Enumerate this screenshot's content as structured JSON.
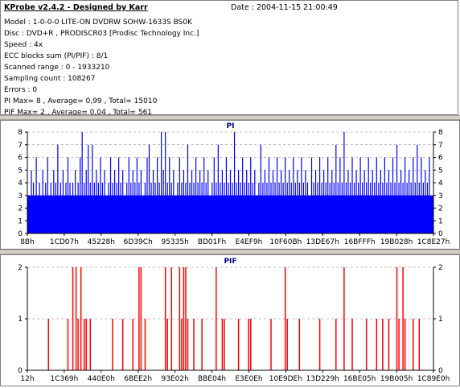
{
  "header": {
    "app_title": "KProbe v2.4.2 - Designed by Karr",
    "date_label": "Date : 2004-11-15 21:00:49"
  },
  "info": [
    "Model : 1-0-0-0 LITE-ON DVDRW SOHW-1633S BS0K",
    "Disc : DVD+R , PRODISCR03 [Prodisc Technology Inc.]",
    "Speed : 4x",
    "ECC blocks sum (PI/PIF) : 8/1",
    "Scanned range : 0 - 1933210",
    "Sampling count : 108267",
    "Errors : 0",
    "PI Max= 8 , Average= 0,99 , Total= 15010",
    "PIF Max= 2 , Average= 0,04 , Total= 561"
  ],
  "colors": {
    "pi_fill": "#0000ff",
    "pif_bar": "#ff0000",
    "axis_line": "#000000",
    "grid": "#808080",
    "plot_bg": "#ffffff"
  },
  "chart_data": [
    {
      "type": "bar",
      "title": "PI",
      "ylim": [
        0,
        8
      ],
      "y_ticks": [
        "0",
        "1",
        "2",
        "3",
        "4",
        "5",
        "6",
        "7",
        "8"
      ],
      "x_tick_labels": [
        "8Bh",
        "1CD07h",
        "45228h",
        "6D39Ch",
        "95335h",
        "BD01Fh",
        "E4EF9h",
        "10F60Bh",
        "13DE67h",
        "16BFFFh",
        "19B028h",
        "1C8E27h"
      ],
      "baseline_level": 3,
      "grid": true,
      "spikes": [
        [
          0.01,
          5
        ],
        [
          0.015,
          4
        ],
        [
          0.022,
          6
        ],
        [
          0.03,
          4
        ],
        [
          0.038,
          5
        ],
        [
          0.045,
          4
        ],
        [
          0.05,
          6
        ],
        [
          0.058,
          4
        ],
        [
          0.065,
          5
        ],
        [
          0.07,
          4
        ],
        [
          0.075,
          7
        ],
        [
          0.082,
          4
        ],
        [
          0.088,
          5
        ],
        [
          0.095,
          4
        ],
        [
          0.1,
          6
        ],
        [
          0.105,
          4
        ],
        [
          0.112,
          4
        ],
        [
          0.118,
          5
        ],
        [
          0.125,
          4
        ],
        [
          0.13,
          6
        ],
        [
          0.135,
          8
        ],
        [
          0.14,
          4
        ],
        [
          0.145,
          5
        ],
        [
          0.15,
          7
        ],
        [
          0.155,
          4
        ],
        [
          0.16,
          7
        ],
        [
          0.165,
          4
        ],
        [
          0.17,
          5
        ],
        [
          0.175,
          4
        ],
        [
          0.18,
          6
        ],
        [
          0.185,
          4
        ],
        [
          0.19,
          5
        ],
        [
          0.2,
          4
        ],
        [
          0.205,
          6
        ],
        [
          0.21,
          4
        ],
        [
          0.215,
          5
        ],
        [
          0.22,
          4
        ],
        [
          0.225,
          6
        ],
        [
          0.23,
          4
        ],
        [
          0.235,
          5
        ],
        [
          0.245,
          4
        ],
        [
          0.25,
          6
        ],
        [
          0.255,
          4
        ],
        [
          0.26,
          5
        ],
        [
          0.265,
          4
        ],
        [
          0.27,
          6
        ],
        [
          0.275,
          4
        ],
        [
          0.28,
          5
        ],
        [
          0.29,
          4
        ],
        [
          0.295,
          6
        ],
        [
          0.3,
          7
        ],
        [
          0.305,
          4
        ],
        [
          0.31,
          5
        ],
        [
          0.315,
          4
        ],
        [
          0.32,
          6
        ],
        [
          0.325,
          4
        ],
        [
          0.33,
          8
        ],
        [
          0.335,
          5
        ],
        [
          0.34,
          8
        ],
        [
          0.345,
          4
        ],
        [
          0.35,
          6
        ],
        [
          0.355,
          4
        ],
        [
          0.36,
          5
        ],
        [
          0.37,
          4
        ],
        [
          0.375,
          6
        ],
        [
          0.38,
          4
        ],
        [
          0.385,
          5
        ],
        [
          0.39,
          4
        ],
        [
          0.395,
          7
        ],
        [
          0.4,
          4
        ],
        [
          0.405,
          5
        ],
        [
          0.41,
          4
        ],
        [
          0.415,
          6
        ],
        [
          0.42,
          4
        ],
        [
          0.425,
          5
        ],
        [
          0.43,
          4
        ],
        [
          0.435,
          6
        ],
        [
          0.44,
          4
        ],
        [
          0.445,
          5
        ],
        [
          0.455,
          4
        ],
        [
          0.46,
          6
        ],
        [
          0.465,
          4
        ],
        [
          0.47,
          7
        ],
        [
          0.475,
          4
        ],
        [
          0.48,
          5
        ],
        [
          0.485,
          4
        ],
        [
          0.49,
          6
        ],
        [
          0.495,
          4
        ],
        [
          0.5,
          5
        ],
        [
          0.505,
          4
        ],
        [
          0.51,
          8
        ],
        [
          0.515,
          4
        ],
        [
          0.52,
          5
        ],
        [
          0.525,
          4
        ],
        [
          0.53,
          6
        ],
        [
          0.535,
          4
        ],
        [
          0.54,
          5
        ],
        [
          0.545,
          4
        ],
        [
          0.55,
          6
        ],
        [
          0.555,
          4
        ],
        [
          0.56,
          5
        ],
        [
          0.57,
          4
        ],
        [
          0.575,
          7
        ],
        [
          0.58,
          4
        ],
        [
          0.585,
          5
        ],
        [
          0.59,
          4
        ],
        [
          0.595,
          6
        ],
        [
          0.6,
          4
        ],
        [
          0.605,
          5
        ],
        [
          0.61,
          4
        ],
        [
          0.615,
          6
        ],
        [
          0.62,
          4
        ],
        [
          0.625,
          5
        ],
        [
          0.63,
          4
        ],
        [
          0.635,
          6
        ],
        [
          0.64,
          4
        ],
        [
          0.645,
          5
        ],
        [
          0.65,
          4
        ],
        [
          0.655,
          6
        ],
        [
          0.66,
          4
        ],
        [
          0.665,
          5
        ],
        [
          0.67,
          4
        ],
        [
          0.675,
          6
        ],
        [
          0.68,
          4
        ],
        [
          0.685,
          5
        ],
        [
          0.69,
          4
        ],
        [
          0.7,
          6
        ],
        [
          0.705,
          4
        ],
        [
          0.71,
          5
        ],
        [
          0.715,
          4
        ],
        [
          0.72,
          6
        ],
        [
          0.725,
          4
        ],
        [
          0.73,
          5
        ],
        [
          0.735,
          4
        ],
        [
          0.74,
          6
        ],
        [
          0.745,
          4
        ],
        [
          0.75,
          5
        ],
        [
          0.755,
          4
        ],
        [
          0.76,
          7
        ],
        [
          0.765,
          4
        ],
        [
          0.77,
          6
        ],
        [
          0.775,
          4
        ],
        [
          0.78,
          8
        ],
        [
          0.785,
          4
        ],
        [
          0.79,
          5
        ],
        [
          0.795,
          4
        ],
        [
          0.8,
          6
        ],
        [
          0.805,
          4
        ],
        [
          0.81,
          5
        ],
        [
          0.815,
          4
        ],
        [
          0.82,
          6
        ],
        [
          0.825,
          4
        ],
        [
          0.83,
          5
        ],
        [
          0.835,
          4
        ],
        [
          0.84,
          6
        ],
        [
          0.845,
          4
        ],
        [
          0.85,
          5
        ],
        [
          0.855,
          4
        ],
        [
          0.86,
          6
        ],
        [
          0.865,
          4
        ],
        [
          0.87,
          5
        ],
        [
          0.875,
          4
        ],
        [
          0.88,
          6
        ],
        [
          0.885,
          4
        ],
        [
          0.89,
          5
        ],
        [
          0.895,
          4
        ],
        [
          0.9,
          6
        ],
        [
          0.905,
          4
        ],
        [
          0.91,
          7
        ],
        [
          0.915,
          4
        ],
        [
          0.92,
          5
        ],
        [
          0.925,
          4
        ],
        [
          0.93,
          6
        ],
        [
          0.935,
          4
        ],
        [
          0.94,
          5
        ],
        [
          0.945,
          4
        ],
        [
          0.95,
          6
        ],
        [
          0.955,
          4
        ],
        [
          0.96,
          7
        ],
        [
          0.965,
          4
        ],
        [
          0.97,
          6
        ],
        [
          0.975,
          4
        ],
        [
          0.98,
          5
        ],
        [
          0.985,
          4
        ],
        [
          0.99,
          6
        ]
      ]
    },
    {
      "type": "bar",
      "title": "PIF",
      "ylim": [
        0,
        2
      ],
      "y_ticks": [
        "0",
        "1",
        "2"
      ],
      "x_tick_labels": [
        "12h",
        "1C369h",
        "440E0h",
        "6BEE2h",
        "93E02h",
        "BBE04h",
        "E3E0Eh",
        "10E9DEh",
        "13D229h",
        "16BE05h",
        "19B005h",
        "1C89E0h"
      ],
      "grid": true,
      "spikes": [
        [
          0.052,
          1
        ],
        [
          0.1,
          1
        ],
        [
          0.112,
          2
        ],
        [
          0.12,
          2
        ],
        [
          0.125,
          1
        ],
        [
          0.132,
          2
        ],
        [
          0.14,
          1
        ],
        [
          0.145,
          1
        ],
        [
          0.155,
          1
        ],
        [
          0.21,
          1
        ],
        [
          0.235,
          1
        ],
        [
          0.26,
          1
        ],
        [
          0.275,
          2
        ],
        [
          0.28,
          2
        ],
        [
          0.29,
          1
        ],
        [
          0.34,
          2
        ],
        [
          0.345,
          1
        ],
        [
          0.355,
          2
        ],
        [
          0.375,
          2
        ],
        [
          0.38,
          1
        ],
        [
          0.385,
          2
        ],
        [
          0.39,
          2
        ],
        [
          0.395,
          1
        ],
        [
          0.41,
          1
        ],
        [
          0.43,
          1
        ],
        [
          0.465,
          2
        ],
        [
          0.48,
          1
        ],
        [
          0.485,
          1
        ],
        [
          0.52,
          1
        ],
        [
          0.545,
          1
        ],
        [
          0.55,
          1
        ],
        [
          0.6,
          1
        ],
        [
          0.635,
          2
        ],
        [
          0.64,
          1
        ],
        [
          0.67,
          1
        ],
        [
          0.72,
          1
        ],
        [
          0.76,
          1
        ],
        [
          0.78,
          2
        ],
        [
          0.8,
          1
        ],
        [
          0.835,
          1
        ],
        [
          0.86,
          1
        ],
        [
          0.875,
          1
        ],
        [
          0.89,
          1
        ],
        [
          0.91,
          2
        ],
        [
          0.915,
          1
        ],
        [
          0.925,
          2
        ],
        [
          0.93,
          1
        ],
        [
          0.95,
          1
        ],
        [
          0.965,
          1
        ]
      ]
    }
  ]
}
